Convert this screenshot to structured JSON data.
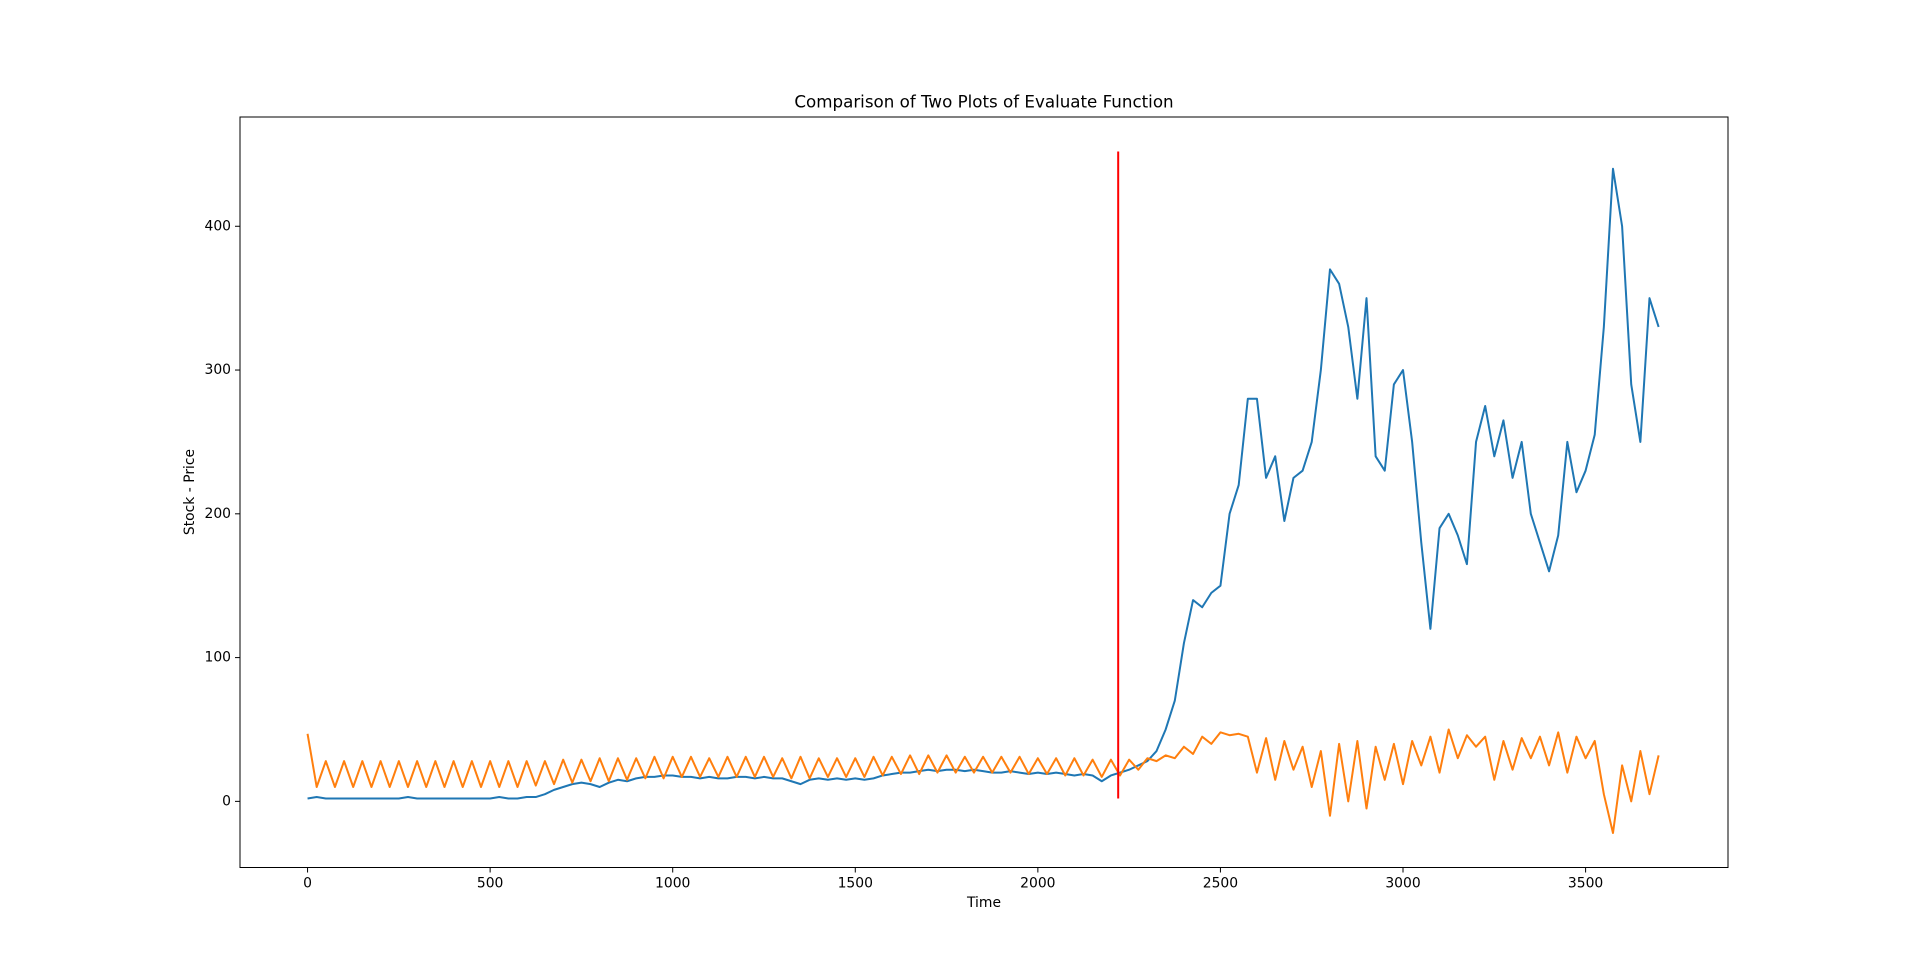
{
  "chart_data": {
    "type": "line",
    "title": "Comparison of Two Plots of Evaluate Function",
    "x_label": "Time",
    "y_label": "Stock - Price",
    "xlim": [
      -185,
      3890
    ],
    "ylim": [
      -46,
      476
    ],
    "xticks": [
      0,
      500,
      1000,
      1500,
      2000,
      2500,
      3000,
      3500
    ],
    "yticks": [
      0,
      100,
      200,
      300,
      400
    ],
    "grid": false,
    "series": [
      {
        "color": "#1f77b4",
        "x": [
          0,
          25,
          50,
          75,
          100,
          125,
          150,
          175,
          200,
          225,
          250,
          275,
          300,
          325,
          350,
          375,
          400,
          425,
          450,
          475,
          500,
          525,
          550,
          575,
          600,
          625,
          650,
          675,
          700,
          725,
          750,
          775,
          800,
          825,
          850,
          875,
          900,
          925,
          950,
          975,
          1000,
          1025,
          1050,
          1075,
          1100,
          1125,
          1150,
          1175,
          1200,
          1225,
          1250,
          1275,
          1300,
          1325,
          1350,
          1375,
          1400,
          1425,
          1450,
          1475,
          1500,
          1525,
          1550,
          1575,
          1600,
          1625,
          1650,
          1675,
          1700,
          1725,
          1750,
          1775,
          1800,
          1825,
          1850,
          1875,
          1900,
          1925,
          1950,
          1975,
          2000,
          2025,
          2050,
          2075,
          2100,
          2125,
          2150,
          2175,
          2200,
          2225,
          2250,
          2275,
          2300,
          2325,
          2350,
          2375,
          2400,
          2425,
          2450,
          2475,
          2500,
          2525,
          2550,
          2575,
          2600,
          2625,
          2650,
          2675,
          2700,
          2725,
          2750,
          2775,
          2800,
          2825,
          2850,
          2875,
          2900,
          2925,
          2950,
          2975,
          3000,
          3025,
          3050,
          3075,
          3100,
          3125,
          3150,
          3175,
          3200,
          3225,
          3250,
          3275,
          3300,
          3325,
          3350,
          3375,
          3400,
          3425,
          3450,
          3475,
          3500,
          3525,
          3550,
          3575,
          3600,
          3625,
          3650,
          3675,
          3700
        ],
        "values": [
          2,
          3,
          2,
          2,
          2,
          2,
          2,
          2,
          2,
          2,
          2,
          3,
          2,
          2,
          2,
          2,
          2,
          2,
          2,
          2,
          2,
          3,
          2,
          2,
          3,
          3,
          5,
          8,
          10,
          12,
          13,
          12,
          10,
          13,
          15,
          14,
          16,
          17,
          17,
          18,
          18,
          17,
          17,
          16,
          17,
          16,
          16,
          17,
          17,
          16,
          17,
          16,
          16,
          14,
          12,
          15,
          16,
          15,
          16,
          15,
          16,
          15,
          16,
          18,
          19,
          20,
          20,
          21,
          22,
          21,
          22,
          22,
          21,
          22,
          21,
          20,
          20,
          21,
          20,
          19,
          20,
          19,
          20,
          19,
          18,
          19,
          18,
          14,
          18,
          20,
          22,
          25,
          28,
          35,
          50,
          70,
          110,
          140,
          135,
          145,
          150,
          200,
          220,
          280,
          280,
          225,
          240,
          195,
          225,
          230,
          250,
          300,
          370,
          360,
          330,
          280,
          350,
          240,
          230,
          290,
          300,
          250,
          180,
          120,
          190,
          200,
          185,
          165,
          250,
          275,
          240,
          265,
          225,
          250,
          200,
          180,
          160,
          185,
          250,
          215,
          230,
          255,
          330,
          440,
          400,
          290,
          250,
          350,
          330
        ]
      },
      {
        "color": "#ff7f0e",
        "x": [
          0,
          25,
          50,
          75,
          100,
          125,
          150,
          175,
          200,
          225,
          250,
          275,
          300,
          325,
          350,
          375,
          400,
          425,
          450,
          475,
          500,
          525,
          550,
          575,
          600,
          625,
          650,
          675,
          700,
          725,
          750,
          775,
          800,
          825,
          850,
          875,
          900,
          925,
          950,
          975,
          1000,
          1025,
          1050,
          1075,
          1100,
          1125,
          1150,
          1175,
          1200,
          1225,
          1250,
          1275,
          1300,
          1325,
          1350,
          1375,
          1400,
          1425,
          1450,
          1475,
          1500,
          1525,
          1550,
          1575,
          1600,
          1625,
          1650,
          1675,
          1700,
          1725,
          1750,
          1775,
          1800,
          1825,
          1850,
          1875,
          1900,
          1925,
          1950,
          1975,
          2000,
          2025,
          2050,
          2075,
          2100,
          2125,
          2150,
          2175,
          2200,
          2225,
          2250,
          2275,
          2300,
          2325,
          2350,
          2375,
          2400,
          2425,
          2450,
          2475,
          2500,
          2525,
          2550,
          2575,
          2600,
          2625,
          2650,
          2675,
          2700,
          2725,
          2750,
          2775,
          2800,
          2825,
          2850,
          2875,
          2900,
          2925,
          2950,
          2975,
          3000,
          3025,
          3050,
          3075,
          3100,
          3125,
          3150,
          3175,
          3200,
          3225,
          3250,
          3275,
          3300,
          3325,
          3350,
          3375,
          3400,
          3425,
          3450,
          3475,
          3500,
          3525,
          3550,
          3575,
          3600,
          3625,
          3650,
          3675,
          3700
        ],
        "values": [
          47,
          10,
          28,
          10,
          28,
          10,
          28,
          10,
          28,
          10,
          28,
          10,
          28,
          10,
          28,
          10,
          28,
          10,
          28,
          10,
          28,
          10,
          28,
          10,
          28,
          11,
          28,
          12,
          29,
          13,
          29,
          14,
          30,
          14,
          30,
          15,
          30,
          16,
          31,
          16,
          31,
          17,
          31,
          17,
          30,
          17,
          31,
          17,
          31,
          17,
          31,
          17,
          30,
          16,
          31,
          16,
          30,
          17,
          30,
          17,
          30,
          17,
          31,
          18,
          31,
          19,
          32,
          19,
          32,
          20,
          32,
          20,
          31,
          20,
          31,
          20,
          31,
          20,
          31,
          19,
          30,
          19,
          30,
          18,
          30,
          18,
          29,
          17,
          29,
          18,
          29,
          22,
          30,
          28,
          32,
          30,
          38,
          33,
          45,
          40,
          48,
          46,
          47,
          45,
          20,
          44,
          15,
          42,
          22,
          38,
          10,
          35,
          -10,
          40,
          0,
          42,
          -5,
          38,
          15,
          40,
          12,
          42,
          25,
          45,
          20,
          50,
          30,
          46,
          38,
          45,
          15,
          42,
          22,
          44,
          30,
          45,
          25,
          48,
          20,
          45,
          30,
          42,
          5,
          -22,
          25,
          0,
          35,
          5,
          32
        ]
      },
      {
        "color": "#ff0000",
        "x": [
          2220,
          2220
        ],
        "values": [
          2,
          452
        ]
      }
    ]
  }
}
